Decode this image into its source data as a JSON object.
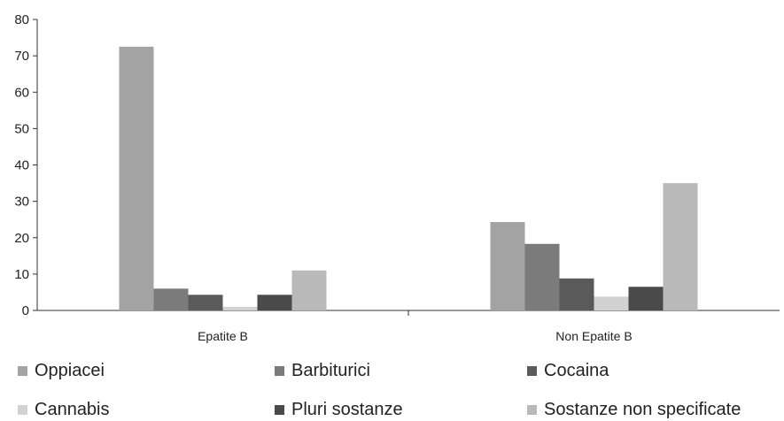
{
  "chart_data": {
    "type": "bar",
    "categories": [
      "Epatite B",
      "Non Epatite B"
    ],
    "series": [
      {
        "name": "Oppiacei",
        "values": [
          72.5,
          24.3
        ],
        "color": "#a3a3a3"
      },
      {
        "name": "Barbiturici",
        "values": [
          6.0,
          18.3
        ],
        "color": "#7b7b7b"
      },
      {
        "name": "Cocaina",
        "values": [
          4.3,
          8.8
        ],
        "color": "#5a5a5a"
      },
      {
        "name": "Cannabis",
        "values": [
          1.0,
          3.8
        ],
        "color": "#d2d2d2"
      },
      {
        "name": "Pluri sostanze",
        "values": [
          4.3,
          6.5
        ],
        "color": "#4a4a4a"
      },
      {
        "name": "Sostanze non specificate",
        "values": [
          11.0,
          35.0
        ],
        "color": "#b9b9b9"
      }
    ],
    "ylim": [
      0,
      80
    ],
    "yticks": [
      0,
      10,
      20,
      30,
      40,
      50,
      60,
      70,
      80
    ],
    "xlabel": "",
    "ylabel": "",
    "grid": false,
    "legend_position": "bottom"
  }
}
